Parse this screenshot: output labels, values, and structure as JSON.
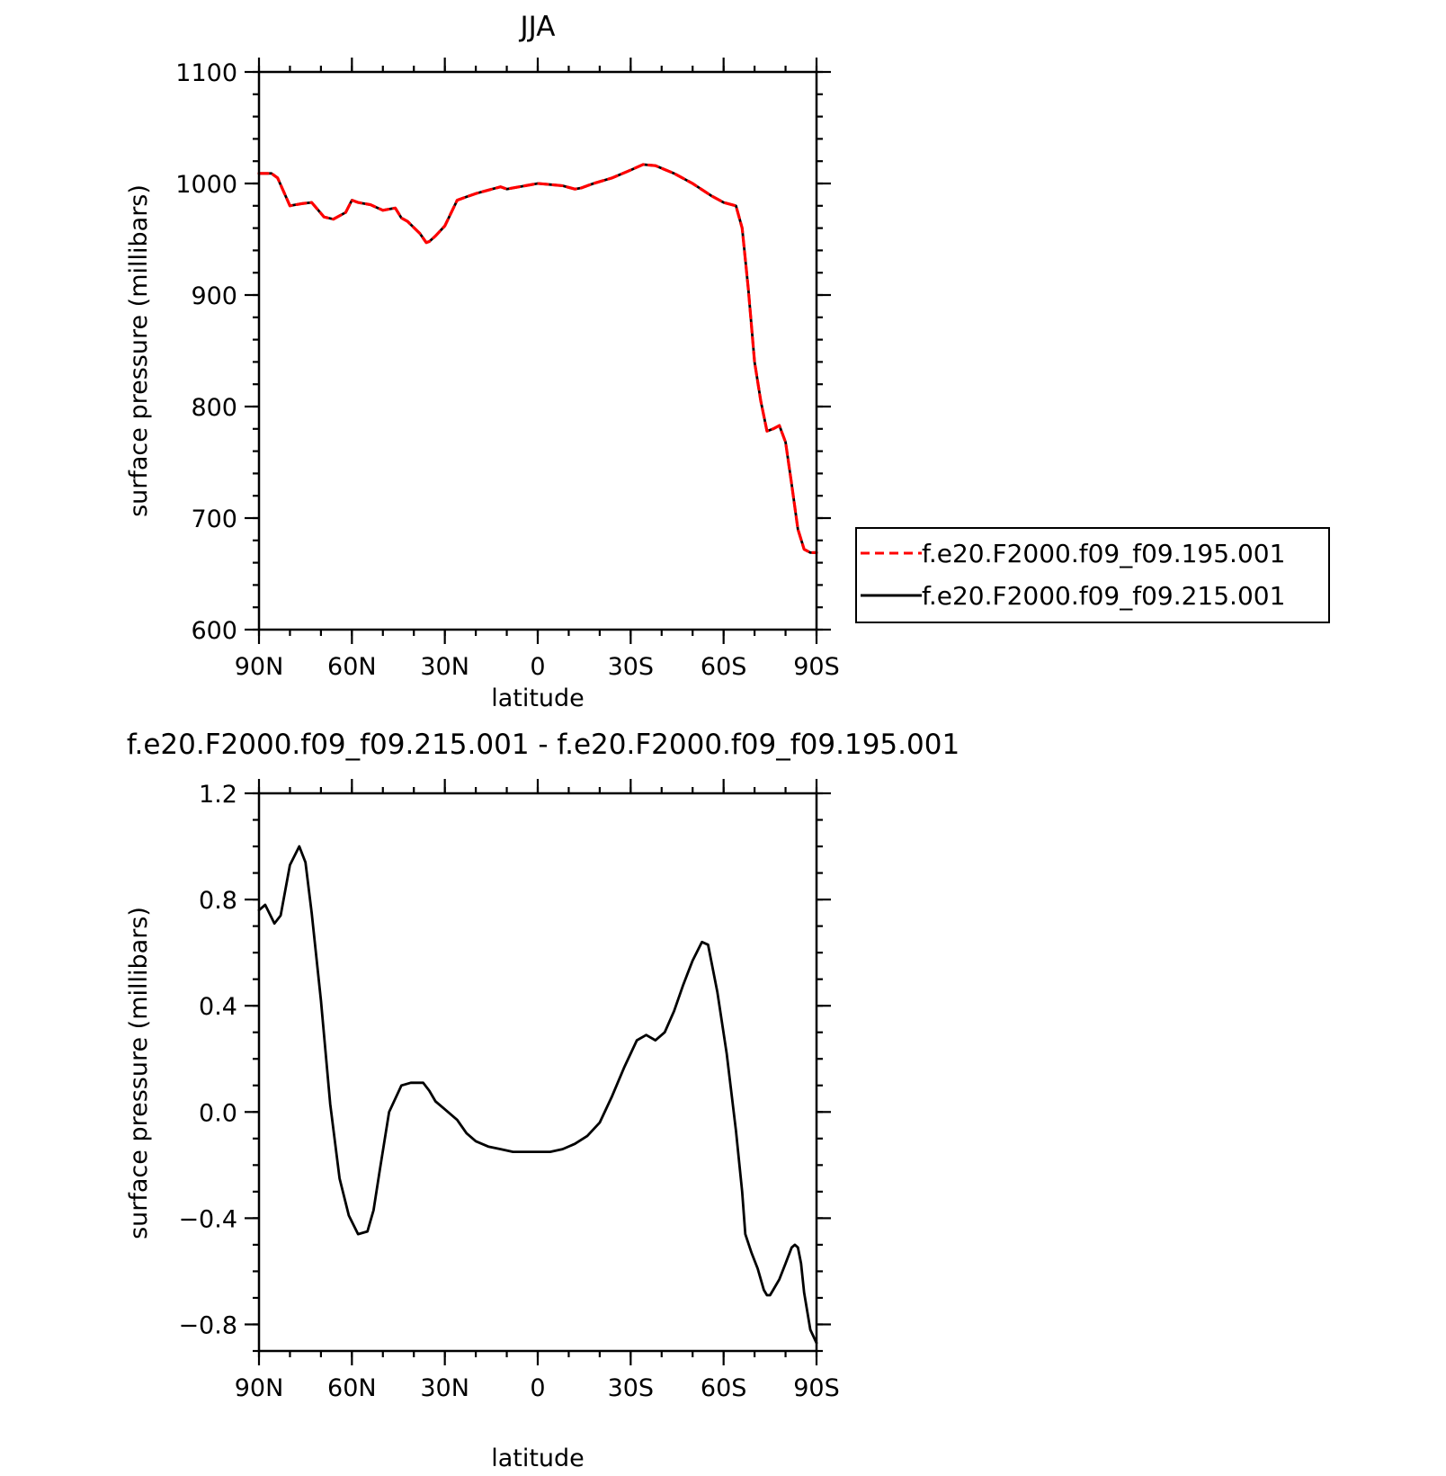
{
  "chart_data": [
    {
      "type": "line",
      "title": "JJA",
      "xlabel": "latitude",
      "ylabel": "surface pressure (millibars)",
      "xlim": [
        -90,
        90
      ],
      "ylim": [
        600,
        1100
      ],
      "x_tick_values": [
        -90,
        -60,
        -30,
        0,
        30,
        60,
        90
      ],
      "x_tick_labels": [
        "90N",
        "60N",
        "30N",
        "0",
        "30S",
        "60S",
        "90S"
      ],
      "y_tick_values": [
        600,
        700,
        800,
        900,
        1000,
        1100
      ],
      "y_tick_labels": [
        "600",
        "700",
        "800",
        "900",
        "1000",
        "1100"
      ],
      "legend_position": "right, outside plot",
      "series": [
        {
          "name": "f.e20.F2000.f09_f09.195.001",
          "color": "#ff0000",
          "style": "dashed",
          "x": [
            -90,
            -86,
            -84,
            -80,
            -76,
            -73,
            -69,
            -66,
            -62,
            -60,
            -58,
            -54,
            -50,
            -46,
            -44,
            -42,
            -38,
            -36,
            -35,
            -33,
            -30,
            -26,
            -24,
            -20,
            -16,
            -12,
            -10,
            -6,
            0,
            4,
            8,
            12,
            14,
            18,
            24,
            30,
            34,
            38,
            44,
            50,
            56,
            60,
            64,
            66,
            68,
            70,
            72,
            74,
            76,
            78,
            80,
            82,
            84,
            86,
            88,
            90
          ],
          "y": [
            1009,
            1009,
            1005,
            980,
            982,
            983,
            970,
            968,
            974,
            985,
            983,
            981,
            976,
            978,
            969,
            966,
            955,
            947,
            948,
            953,
            962,
            985,
            987,
            991,
            994,
            997,
            995,
            997,
            1000,
            999,
            998,
            995,
            996,
            1000,
            1005,
            1012,
            1017,
            1016,
            1009,
            1000,
            989,
            983,
            980,
            960,
            905,
            840,
            805,
            778,
            780,
            783,
            768,
            730,
            690,
            672,
            669,
            669
          ]
        },
        {
          "name": "f.e20.F2000.f09_f09.215.001",
          "color": "#000000",
          "style": "solid",
          "x": [
            -90,
            -86,
            -84,
            -80,
            -76,
            -73,
            -69,
            -66,
            -62,
            -60,
            -58,
            -54,
            -50,
            -46,
            -44,
            -42,
            -38,
            -36,
            -35,
            -33,
            -30,
            -26,
            -24,
            -20,
            -16,
            -12,
            -10,
            -6,
            0,
            4,
            8,
            12,
            14,
            18,
            24,
            30,
            34,
            38,
            44,
            50,
            56,
            60,
            64,
            66,
            68,
            70,
            72,
            74,
            76,
            78,
            80,
            82,
            84,
            86,
            88,
            90
          ],
          "y": [
            1009,
            1009,
            1005,
            980,
            982,
            983,
            970,
            968,
            974,
            985,
            983,
            981,
            976,
            978,
            969,
            966,
            955,
            947,
            948,
            953,
            962,
            985,
            987,
            991,
            994,
            997,
            995,
            997,
            1000,
            999,
            998,
            995,
            996,
            1000,
            1005,
            1012,
            1017,
            1016,
            1009,
            1000,
            989,
            983,
            980,
            960,
            905,
            840,
            805,
            778,
            780,
            783,
            768,
            730,
            690,
            672,
            669,
            669
          ]
        }
      ]
    },
    {
      "type": "line",
      "title": "f.e20.F2000.f09_f09.215.001 - f.e20.F2000.f09_f09.195.001",
      "xlabel": "latitude",
      "ylabel": "surface pressure (millibars)",
      "xlim": [
        -90,
        90
      ],
      "ylim": [
        -0.9,
        1.2
      ],
      "x_tick_values": [
        -90,
        -60,
        -30,
        0,
        30,
        60,
        90
      ],
      "x_tick_labels": [
        "90N",
        "60N",
        "30N",
        "0",
        "30S",
        "60S",
        "90S"
      ],
      "y_tick_values": [
        -0.8,
        -0.4,
        0.0,
        0.4,
        0.8,
        1.2
      ],
      "y_tick_labels": [
        "−0.8",
        "−0.4",
        "0.0",
        "0.4",
        "0.8",
        "1.2"
      ],
      "series": [
        {
          "color": "#000000",
          "style": "solid",
          "x": [
            -90,
            -88,
            -85,
            -83,
            -80,
            -77,
            -75,
            -73,
            -70,
            -67,
            -64,
            -61,
            -58,
            -55,
            -53,
            -51,
            -48,
            -44,
            -41,
            -39,
            -37,
            -35,
            -33,
            -30,
            -26,
            -23,
            -20,
            -16,
            -12,
            -8,
            -4,
            0,
            4,
            8,
            12,
            16,
            20,
            24,
            28,
            32,
            35,
            38,
            41,
            44,
            47,
            50,
            53,
            55,
            58,
            61,
            64,
            66,
            67,
            69,
            71,
            72,
            73,
            74,
            75,
            76,
            78,
            80,
            81,
            82,
            83,
            84,
            85,
            86,
            88,
            90
          ],
          "y": [
            0.76,
            0.78,
            0.71,
            0.74,
            0.93,
            1.0,
            0.94,
            0.75,
            0.42,
            0.03,
            -0.25,
            -0.39,
            -0.46,
            -0.45,
            -0.37,
            -0.22,
            0.0,
            0.1,
            0.11,
            0.11,
            0.11,
            0.08,
            0.04,
            0.01,
            -0.03,
            -0.08,
            -0.11,
            -0.13,
            -0.14,
            -0.15,
            -0.15,
            -0.15,
            -0.15,
            -0.14,
            -0.12,
            -0.09,
            -0.04,
            0.06,
            0.17,
            0.27,
            0.29,
            0.27,
            0.3,
            0.38,
            0.48,
            0.57,
            0.64,
            0.63,
            0.45,
            0.22,
            -0.07,
            -0.3,
            -0.46,
            -0.53,
            -0.59,
            -0.63,
            -0.67,
            -0.69,
            -0.69,
            -0.67,
            -0.63,
            -0.57,
            -0.54,
            -0.51,
            -0.5,
            -0.51,
            -0.57,
            -0.68,
            -0.82,
            -0.87
          ]
        }
      ]
    }
  ]
}
